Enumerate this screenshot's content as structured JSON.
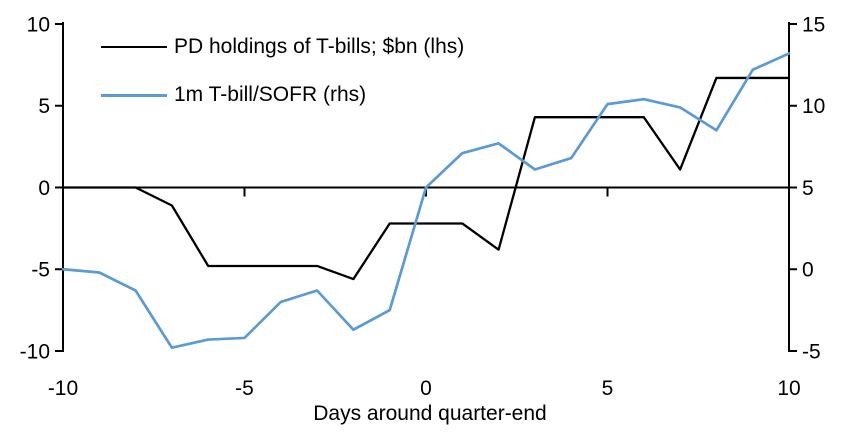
{
  "chart_data": {
    "type": "line",
    "title": "",
    "xlabel": "Days around quarter-end",
    "x": [
      -10,
      -9,
      -8,
      -7,
      -6,
      -5,
      -4,
      -3,
      -2,
      -1,
      0,
      1,
      2,
      3,
      4,
      5,
      6,
      7,
      8,
      9,
      10
    ],
    "x_ticks": [
      -10,
      -5,
      0,
      5,
      10
    ],
    "left_axis": {
      "ticks": [
        10,
        5,
        0,
        -5,
        -10
      ],
      "range": [
        -10,
        10
      ]
    },
    "right_axis": {
      "ticks": [
        15,
        10,
        5,
        0,
        -5
      ],
      "range": [
        -5,
        15
      ]
    },
    "grid": false,
    "legend_position": "top-left-inside",
    "axis_color": "#000000",
    "series": [
      {
        "id": "pd-holdings",
        "name": "PD holdings of T-bills; $bn (lhs)",
        "axis": "left",
        "color": "#000000",
        "values": [
          0,
          0,
          0,
          -1.1,
          -4.8,
          -4.8,
          -4.8,
          -4.8,
          -5.6,
          -2.2,
          -2.2,
          -2.2,
          -3.8,
          4.3,
          4.3,
          4.3,
          4.3,
          1.1,
          6.7,
          6.7,
          6.7
        ]
      },
      {
        "id": "tbill-sofr",
        "name": "1m T-bill/SOFR (rhs)",
        "axis": "right",
        "color": "#5B9BD5",
        "values": [
          0.0,
          -0.2,
          -1.3,
          -4.8,
          -4.3,
          -4.2,
          -2.0,
          -1.3,
          -3.7,
          -2.5,
          5.0,
          7.1,
          7.7,
          6.1,
          6.8,
          10.1,
          10.4,
          9.9,
          8.5,
          12.2,
          13.2
        ]
      }
    ]
  }
}
